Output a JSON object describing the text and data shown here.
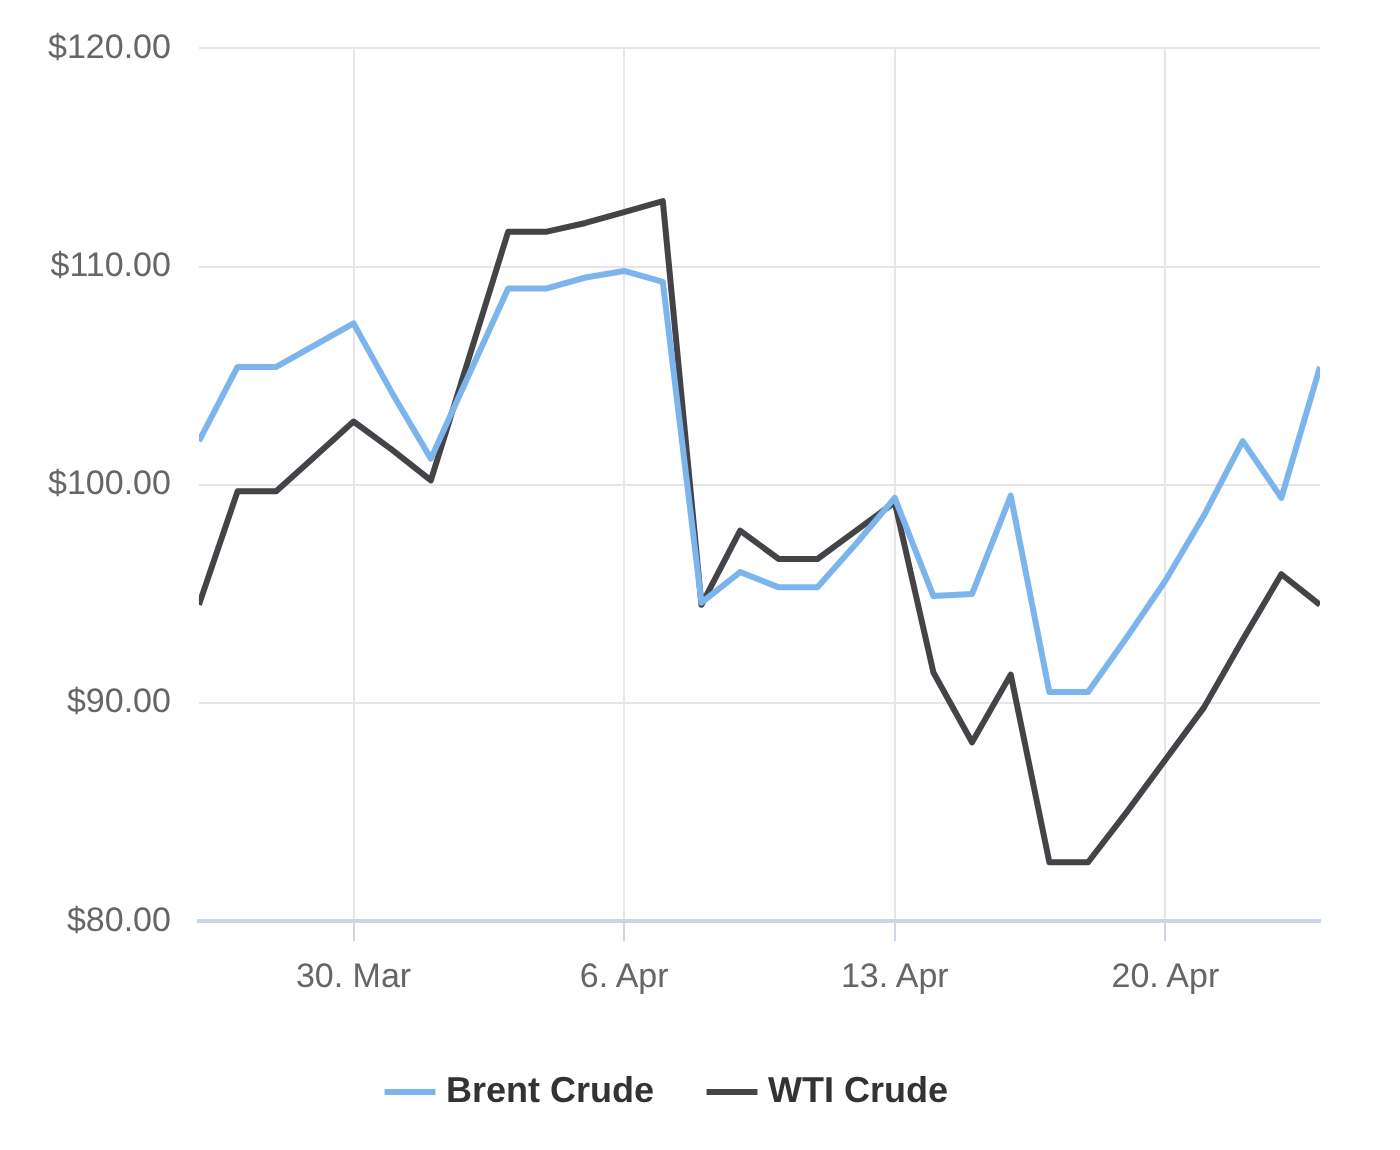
{
  "chart_data": {
    "type": "line",
    "x": [
      "--03-26",
      "--03-27",
      "--03-28",
      "--03-29",
      "--03-30",
      "--03-31",
      "--04-01",
      "--04-02",
      "--04-03",
      "--04-04",
      "--04-05",
      "--04-06",
      "--04-07",
      "--04-08",
      "--04-09",
      "--04-10",
      "--04-11",
      "--04-12",
      "--04-13",
      "--04-14",
      "--04-15",
      "--04-16",
      "--04-17",
      "--04-18",
      "--04-19",
      "--04-20",
      "--04-21",
      "--04-22",
      "--04-23",
      "--04-24"
    ],
    "series": [
      {
        "name": "Brent Crude",
        "color": "#7cb5ec",
        "values": [
          102.0,
          105.4,
          105.4,
          106.4,
          107.4,
          104.2,
          101.2,
          105.1,
          109.0,
          109.0,
          109.5,
          109.8,
          109.3,
          94.6,
          96.0,
          95.3,
          95.3,
          97.3,
          99.4,
          94.9,
          95.0,
          99.5,
          90.5,
          90.5,
          93.0,
          95.6,
          98.6,
          102.0,
          99.4,
          105.4
        ]
      },
      {
        "name": "WTI Crude",
        "color": "#434348",
        "values": [
          94.5,
          99.7,
          99.7,
          101.3,
          102.9,
          101.6,
          100.2,
          105.9,
          111.6,
          111.6,
          112.0,
          112.5,
          113.0,
          94.5,
          97.9,
          96.6,
          96.6,
          97.9,
          99.2,
          91.4,
          88.2,
          91.3,
          82.7,
          82.7,
          85.0,
          87.4,
          89.8,
          92.9,
          95.9,
          94.5
        ]
      }
    ],
    "xlim": [
      "--03-26",
      "--04-24"
    ],
    "xticks": [
      {
        "value": "--03-30",
        "label": "30. Mar"
      },
      {
        "value": "--04-06",
        "label": "6. Apr"
      },
      {
        "value": "--04-13",
        "label": "13. Apr"
      },
      {
        "value": "--04-20",
        "label": "20. Apr"
      }
    ],
    "ylim": [
      80,
      120
    ],
    "yticks": [
      {
        "value": 80,
        "label": "$80.00"
      },
      {
        "value": 90,
        "label": "$90.00"
      },
      {
        "value": 100,
        "label": "$100.00"
      },
      {
        "value": 110,
        "label": "$110.00"
      },
      {
        "value": 120,
        "label": "$120.00"
      }
    ],
    "grid": true,
    "legend": "bottom",
    "marker": "none",
    "line_style": "solid"
  }
}
